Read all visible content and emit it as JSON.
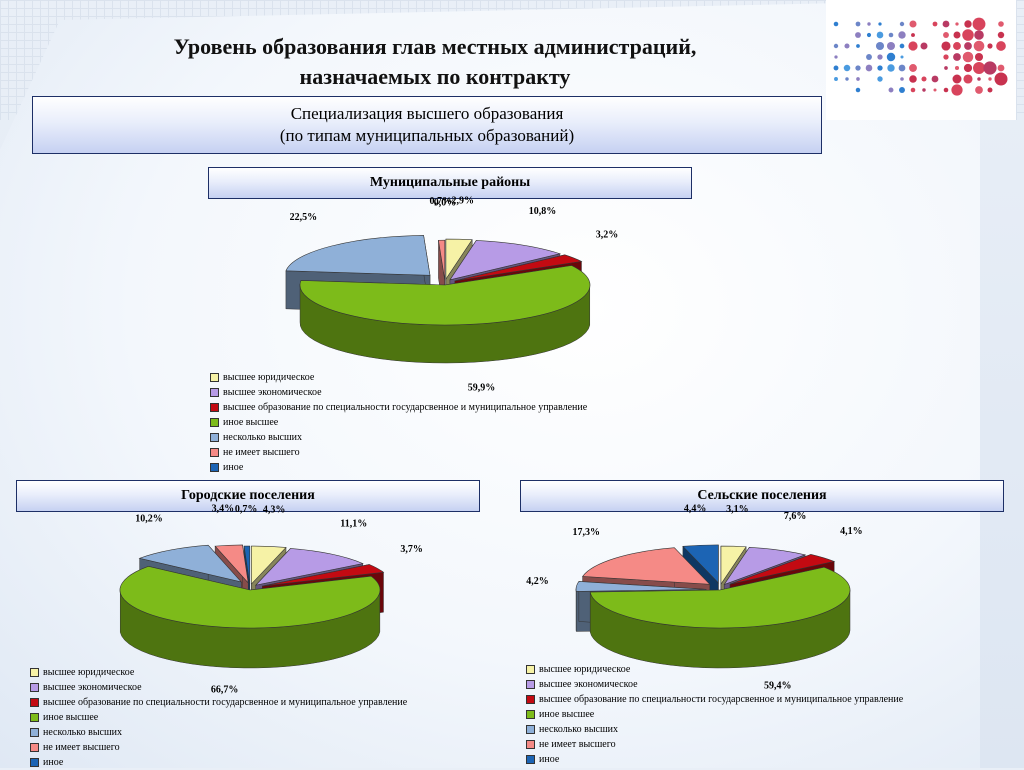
{
  "title": {
    "line1": "Уровень образования глав местных администраций,",
    "line2": "назначаемых по контракту"
  },
  "subtitle": {
    "line1": "Специализация высшего образования",
    "line2": "(по типам муниципальных образований)"
  },
  "legend_items": [
    {
      "label": "высшее юридическое",
      "color": "#f6f2a6"
    },
    {
      "label": "высшее экономическое",
      "color": "#b79be6"
    },
    {
      "label": "высшее образование по специальности государсвенное и муниципальное управление",
      "color": "#c30a12"
    },
    {
      "label": "иное высшее",
      "color": "#7dbb1a"
    },
    {
      "label": "несколько высших",
      "color": "#8fb0d8"
    },
    {
      "label": "не имеет высшего",
      "color": "#f58a86"
    },
    {
      "label": "иное",
      "color": "#1c64b4"
    }
  ],
  "chart_data": [
    {
      "type": "pie",
      "title": "Муниципальные районы",
      "categories": [
        "высшее юридическое",
        "высшее экономическое",
        "высшее образование по специальности государсвенное и муниципальное управление",
        "иное высшее",
        "несколько высших",
        "не имеет высшего",
        "иное"
      ],
      "values": [
        2.9,
        10.8,
        3.2,
        59.9,
        22.5,
        0.7,
        0.0
      ],
      "labels": [
        "2,9%",
        "10,8%",
        "3,2%",
        "59,9%",
        "22,5%",
        "0,7%",
        "0,0%"
      ]
    },
    {
      "type": "pie",
      "title": "Городские поселения",
      "categories": [
        "высшее юридическое",
        "высшее экономическое",
        "высшее образование по специальности государсвенное и муниципальное управление",
        "иное высшее",
        "несколько высших",
        "не имеет высшего",
        "иное"
      ],
      "values": [
        4.3,
        11.1,
        3.7,
        66.7,
        10.2,
        3.4,
        0.7
      ],
      "labels": [
        "4,3%",
        "11,1%",
        "3,7%",
        "66,7%",
        "10,2%",
        "3,4%",
        "0,7%"
      ]
    },
    {
      "type": "pie",
      "title": "Сельские поселения",
      "categories": [
        "высшее юридическое",
        "высшее экономическое",
        "высшее образование по специальности государсвенное и муниципальное управление",
        "иное высшее",
        "несколько высших",
        "не имеет высшего",
        "иное"
      ],
      "values": [
        3.1,
        7.6,
        4.1,
        59.4,
        4.2,
        17.3,
        4.4
      ],
      "labels": [
        "3,1%",
        "7,6%",
        "4,1%",
        "59,4%",
        "4,2%",
        "17,3%",
        "4,4%"
      ]
    }
  ]
}
